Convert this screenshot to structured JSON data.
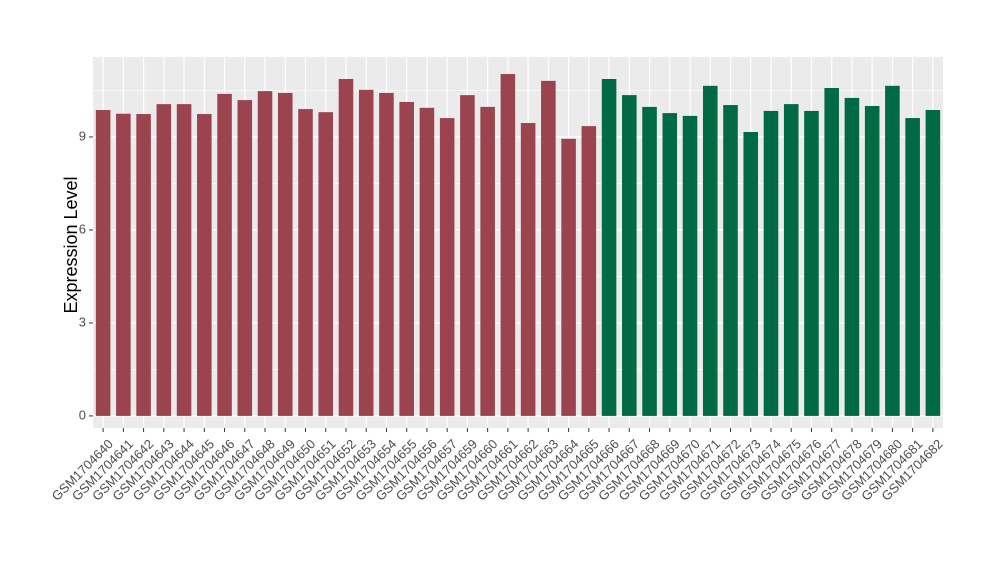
{
  "chart_data": {
    "type": "bar",
    "y_label": "Expression Level",
    "categories": [
      "GSM1704640",
      "GSM1704641",
      "GSM1704642",
      "GSM1704643",
      "GSM1704644",
      "GSM1704645",
      "GSM1704646",
      "GSM1704647",
      "GSM1704648",
      "GSM1704649",
      "GSM1704650",
      "GSM1704651",
      "GSM1704652",
      "GSM1704653",
      "GSM1704654",
      "GSM1704655",
      "GSM1704656",
      "GSM1704657",
      "GSM1704659",
      "GSM1704660",
      "GSM1704661",
      "GSM1704662",
      "GSM1704663",
      "GSM1704664",
      "GSM1704665",
      "GSM1704666",
      "GSM1704667",
      "GSM1704668",
      "GSM1704669",
      "GSM1704670",
      "GSM1704671",
      "GSM1704672",
      "GSM1704673",
      "GSM1704674",
      "GSM1704675",
      "GSM1704676",
      "GSM1704677",
      "GSM1704678",
      "GSM1704679",
      "GSM1704680",
      "GSM1704681",
      "GSM1704682"
    ],
    "values": [
      9.87,
      9.75,
      9.74,
      10.06,
      10.06,
      9.74,
      10.39,
      10.19,
      10.48,
      10.42,
      9.9,
      9.8,
      10.87,
      10.52,
      10.42,
      10.13,
      9.94,
      9.61,
      10.35,
      9.97,
      11.03,
      9.45,
      10.81,
      8.94,
      9.35,
      10.87,
      10.35,
      9.97,
      9.77,
      9.68,
      10.65,
      10.03,
      9.16,
      9.84,
      10.06,
      9.84,
      10.58,
      10.26,
      10.0,
      10.65,
      9.61,
      9.87
    ],
    "colors": [
      "#9b4450",
      "#9b4450",
      "#9b4450",
      "#9b4450",
      "#9b4450",
      "#9b4450",
      "#9b4450",
      "#9b4450",
      "#9b4450",
      "#9b4450",
      "#9b4450",
      "#9b4450",
      "#9b4450",
      "#9b4450",
      "#9b4450",
      "#9b4450",
      "#9b4450",
      "#9b4450",
      "#9b4450",
      "#9b4450",
      "#9b4450",
      "#9b4450",
      "#9b4450",
      "#9b4450",
      "#9b4450",
      "#006a44",
      "#006a44",
      "#006a44",
      "#006a44",
      "#006a44",
      "#006a44",
      "#006a44",
      "#006a44",
      "#006a44",
      "#006a44",
      "#006a44",
      "#006a44",
      "#006a44",
      "#006a44",
      "#006a44",
      "#006a44",
      "#006a44"
    ],
    "ylim": [
      -0.39,
      11.58
    ],
    "yticks": [
      0,
      3,
      6,
      9
    ],
    "minor_yticks": [
      1.5,
      4.5,
      7.5,
      10.5
    ],
    "grid": true
  }
}
